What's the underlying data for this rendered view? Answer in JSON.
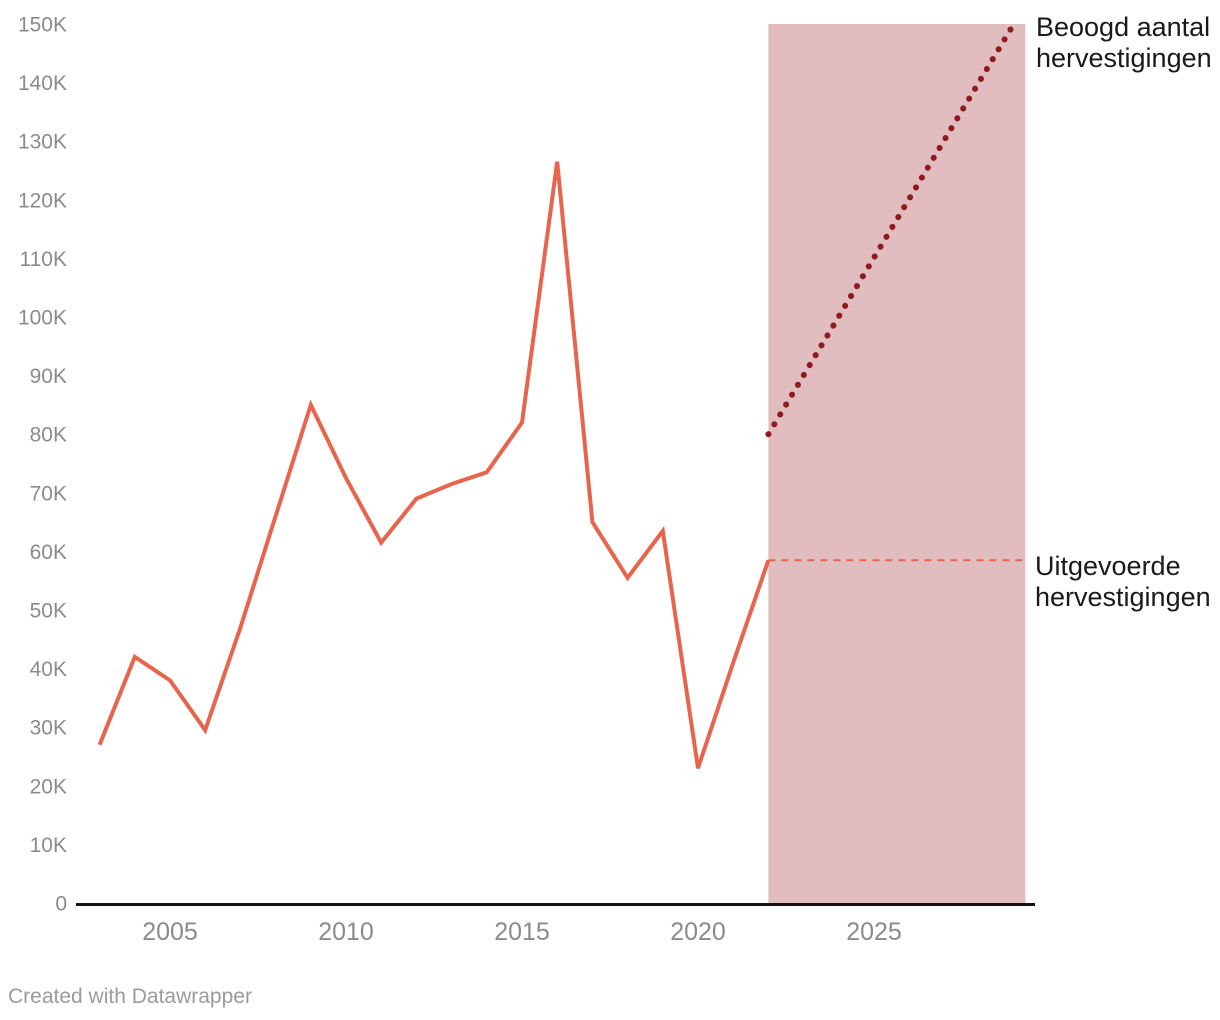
{
  "chart_data": {
    "type": "line",
    "title": "",
    "xlabel": "",
    "ylabel": "",
    "xlim": [
      2002.3,
      2029.6
    ],
    "ylim": [
      0,
      150
    ],
    "y_unit": "K",
    "grid": false,
    "x_axis": {
      "ticks": [
        {
          "value": 2005,
          "label": "2005"
        },
        {
          "value": 2010,
          "label": "2010"
        },
        {
          "value": 2015,
          "label": "2015"
        },
        {
          "value": 2020,
          "label": "2020"
        },
        {
          "value": 2025,
          "label": "2025"
        }
      ]
    },
    "y_axis": {
      "ticks": [
        {
          "value": 0,
          "label": "0"
        },
        {
          "value": 10,
          "label": "10K"
        },
        {
          "value": 20,
          "label": "20K"
        },
        {
          "value": 30,
          "label": "30K"
        },
        {
          "value": 40,
          "label": "40K"
        },
        {
          "value": 50,
          "label": "50K"
        },
        {
          "value": 60,
          "label": "60K"
        },
        {
          "value": 70,
          "label": "70K"
        },
        {
          "value": 80,
          "label": "80K"
        },
        {
          "value": 90,
          "label": "90K"
        },
        {
          "value": 100,
          "label": "100K"
        },
        {
          "value": 110,
          "label": "110K"
        },
        {
          "value": 120,
          "label": "120K"
        },
        {
          "value": 130,
          "label": "130K"
        },
        {
          "value": 140,
          "label": "140K"
        },
        {
          "value": 150,
          "label": "150K"
        }
      ]
    },
    "series": [
      {
        "name": "Uitgevoerde hervestigingen",
        "style": "solid",
        "color": "#e7644d",
        "stroke_width": 4,
        "x": [
          2003,
          2004,
          2005,
          2006,
          2007,
          2008,
          2009,
          2010,
          2011,
          2012,
          2013,
          2014,
          2015,
          2016,
          2017,
          2018,
          2019,
          2020,
          2021,
          2022
        ],
        "values": [
          27,
          42,
          38,
          29.5,
          47,
          66,
          85,
          72.5,
          61.5,
          69,
          71.5,
          73.5,
          82,
          126.5,
          65,
          55.5,
          63.5,
          23,
          41,
          58.5
        ]
      },
      {
        "name": "Beoogd aantal hervestigingen",
        "style": "dotted",
        "color": "#8f1a20",
        "stroke_width": 6,
        "x": [
          2022,
          2028.9
        ],
        "values": [
          80,
          149.3
        ]
      },
      {
        "name": "Uitgevoerde hervestigingen niveau 2022",
        "style": "dashed",
        "color": "#e7644d",
        "stroke_width": 2,
        "x": [
          2022,
          2029.35
        ],
        "values": [
          58.5,
          58.5
        ]
      }
    ],
    "shaded_region": {
      "x_start": 2022,
      "x_end": 2029.3,
      "y_min": 0,
      "y_max": 150,
      "color": "#e1bdbf"
    },
    "annotations": [
      {
        "lines": [
          "Beoogd aantal",
          "hervestigingen"
        ]
      },
      {
        "lines": [
          "Uitgevoerde",
          "hervestigingen"
        ]
      }
    ],
    "legend_position": "annotated-right"
  },
  "colors": {
    "accent_salmon": "#e7644d",
    "accent_dark_red": "#8f1a20",
    "band_pink": "#e1bdbf",
    "tick_gray": "#8b8b8b",
    "axis_black": "#141414"
  },
  "footer": {
    "credit": "Created with Datawrapper"
  }
}
